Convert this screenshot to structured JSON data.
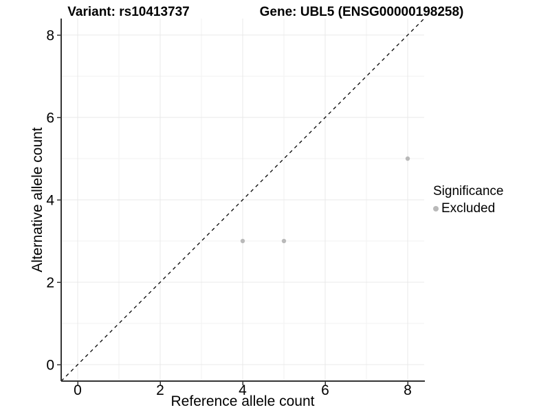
{
  "figure": {
    "title_left": "Variant: rs10413737",
    "title_right": "Gene: UBL5 (ENSG00000198258)"
  },
  "chart_data": {
    "type": "scatter",
    "title": "Variant: rs10413737   Gene: UBL5 (ENSG00000198258)",
    "xlabel": "Reference allele count",
    "ylabel": "Alternative allele count",
    "xlim": [
      -0.4,
      8.4
    ],
    "ylim": [
      -0.4,
      8.4
    ],
    "x_ticks": [
      0,
      2,
      4,
      6,
      8
    ],
    "y_ticks": [
      0,
      2,
      4,
      6,
      8
    ],
    "x_minor": [
      1,
      3,
      5,
      7
    ],
    "y_minor": [
      1,
      3,
      5,
      7
    ],
    "grid": true,
    "identity_line": {
      "style": "dashed",
      "color": "#000000",
      "from": [
        -0.4,
        -0.4
      ],
      "to": [
        8.4,
        8.4
      ]
    },
    "series": [
      {
        "name": "Excluded",
        "color": "#b9b9b9",
        "marker": "circle",
        "points": [
          [
            4,
            3
          ],
          [
            5,
            3
          ],
          [
            8,
            5
          ]
        ]
      }
    ],
    "legend": {
      "title": "Significance",
      "position": "right",
      "items": [
        {
          "label": "Excluded",
          "color": "#b9b9b9",
          "marker": "circle"
        }
      ]
    }
  },
  "colors": {
    "background": "#ffffff",
    "axis_line": "#333333",
    "tick_mark": "#333333",
    "grid_major": "#e8e8e8",
    "grid_minor": "#f2f2f2",
    "text": "#000000",
    "point": "#b9b9b9"
  }
}
